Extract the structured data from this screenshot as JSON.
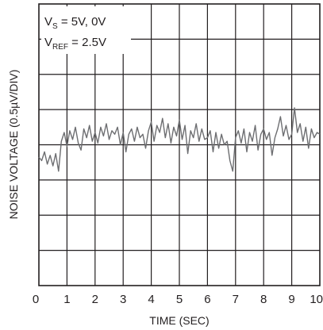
{
  "chart_data": {
    "type": "line",
    "title": "",
    "xlabel": "TIME (SEC)",
    "ylabel": "NOISE VOLTAGE (0.5µV/DIV)",
    "xlim": [
      0,
      10
    ],
    "ylim_div": [
      -4,
      4
    ],
    "x_ticks": [
      "0",
      "1",
      "2",
      "3",
      "4",
      "5",
      "6",
      "7",
      "8",
      "9",
      "10"
    ],
    "grid": true,
    "y_divisions": 8,
    "annotations": [
      {
        "name": "supply",
        "main": "V",
        "sub": "S",
        "rest": " = 5V, 0V"
      },
      {
        "name": "reference",
        "main": "V",
        "sub": "REF",
        "rest": " = 2.5V"
      }
    ],
    "series": [
      {
        "line_color": "#6d6e71",
        "x": [
          0.0,
          0.1,
          0.2,
          0.3,
          0.4,
          0.5,
          0.6,
          0.7,
          0.8,
          0.9,
          1.0,
          1.1,
          1.2,
          1.3,
          1.4,
          1.5,
          1.6,
          1.7,
          1.8,
          1.9,
          2.0,
          2.1,
          2.2,
          2.3,
          2.4,
          2.5,
          2.6,
          2.7,
          2.8,
          2.9,
          3.0,
          3.1,
          3.2,
          3.3,
          3.4,
          3.5,
          3.6,
          3.7,
          3.8,
          3.9,
          4.0,
          4.1,
          4.2,
          4.3,
          4.4,
          4.5,
          4.6,
          4.7,
          4.8,
          4.9,
          5.0,
          5.1,
          5.2,
          5.3,
          5.4,
          5.5,
          5.6,
          5.7,
          5.8,
          5.9,
          6.0,
          6.1,
          6.2,
          6.3,
          6.4,
          6.5,
          6.6,
          6.7,
          6.8,
          6.9,
          7.0,
          7.1,
          7.2,
          7.3,
          7.4,
          7.5,
          7.6,
          7.7,
          7.8,
          7.9,
          8.0,
          8.1,
          8.2,
          8.3,
          8.4,
          8.5,
          8.6,
          8.7,
          8.8,
          8.9,
          9.0,
          9.1,
          9.2,
          9.3,
          9.4,
          9.5,
          9.6,
          9.7,
          9.8,
          9.9,
          10.0
        ],
        "y_div": [
          -0.35,
          -0.45,
          -0.2,
          -0.55,
          -0.3,
          -0.6,
          -0.25,
          -0.75,
          0.1,
          0.35,
          -0.05,
          0.4,
          0.15,
          0.5,
          0.05,
          -0.15,
          0.45,
          0.2,
          0.55,
          0.1,
          0.35,
          0.05,
          0.5,
          0.25,
          0.6,
          0.15,
          0.4,
          0.3,
          0.5,
          0.0,
          0.35,
          -0.2,
          0.3,
          0.45,
          0.1,
          0.5,
          0.2,
          0.3,
          -0.1,
          0.4,
          0.65,
          0.1,
          0.55,
          0.35,
          0.75,
          0.2,
          0.6,
          0.05,
          0.5,
          0.25,
          0.7,
          0.15,
          0.55,
          -0.25,
          0.4,
          0.2,
          0.6,
          0.1,
          0.45,
          0.15,
          0.2,
          0.4,
          -0.2,
          0.35,
          -0.1,
          0.3,
          0.0,
          0.1,
          -0.45,
          -0.75,
          0.2,
          0.4,
          0.05,
          0.45,
          -0.2,
          0.35,
          0.1,
          0.55,
          -0.15,
          0.3,
          0.45,
          0.15,
          0.35,
          -0.3,
          0.2,
          0.45,
          0.8,
          0.25,
          0.55,
          0.15,
          0.3,
          1.05,
          0.35,
          0.6,
          0.1,
          0.5,
          -0.1,
          0.45,
          0.2,
          0.35,
          0.3
        ]
      }
    ]
  }
}
